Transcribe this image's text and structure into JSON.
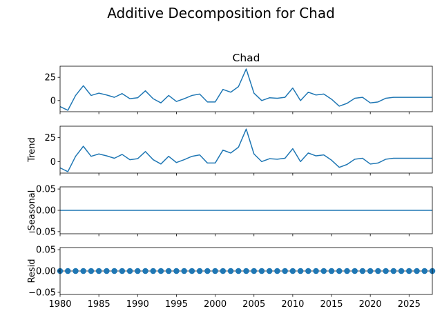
{
  "figure": {
    "suptitle": "Additive Decomposition for Chad"
  },
  "colors": {
    "line": "#1f77b4",
    "axes": "#000000",
    "background": "#ffffff"
  },
  "chart_data": [
    {
      "type": "line",
      "panel": "observed",
      "title": "Chad",
      "ylabel": "",
      "xlim": [
        1980,
        2028
      ],
      "ylim": [
        -12,
        37
      ],
      "yticks": [
        0,
        25
      ],
      "yticklabels": [
        "0",
        "25"
      ],
      "x": [
        1980,
        1981,
        1982,
        1983,
        1984,
        1985,
        1986,
        1987,
        1988,
        1989,
        1990,
        1991,
        1992,
        1993,
        1994,
        1995,
        1996,
        1997,
        1998,
        1999,
        2000,
        2001,
        2002,
        2003,
        2004,
        2005,
        2006,
        2007,
        2008,
        2009,
        2010,
        2011,
        2012,
        2013,
        2014,
        2015,
        2016,
        2017,
        2018,
        2019,
        2020,
        2021,
        2022,
        2023,
        2024,
        2025,
        2026,
        2027,
        2028
      ],
      "y": [
        -6.5,
        -10.5,
        5.5,
        16,
        5.5,
        8,
        6,
        3.5,
        7.5,
        2,
        3,
        10.5,
        2,
        -2.5,
        5.5,
        -1,
        2,
        5.5,
        7,
        -1.5,
        -1.5,
        12,
        9,
        15,
        34,
        8,
        0,
        3,
        2.5,
        3.5,
        13.5,
        0,
        9,
        6,
        7,
        1.5,
        -6,
        -3,
        2.5,
        3.5,
        -2.5,
        -1.5,
        2.5,
        3.5,
        3.5,
        3.5,
        3.5,
        3.5,
        3.5
      ]
    },
    {
      "type": "line",
      "panel": "trend",
      "ylabel": "Trend",
      "xlim": [
        1980,
        2028
      ],
      "ylim": [
        -12,
        37
      ],
      "yticks": [
        0,
        25
      ],
      "yticklabels": [
        "0",
        "25"
      ],
      "x": [
        1980,
        1981,
        1982,
        1983,
        1984,
        1985,
        1986,
        1987,
        1988,
        1989,
        1990,
        1991,
        1992,
        1993,
        1994,
        1995,
        1996,
        1997,
        1998,
        1999,
        2000,
        2001,
        2002,
        2003,
        2004,
        2005,
        2006,
        2007,
        2008,
        2009,
        2010,
        2011,
        2012,
        2013,
        2014,
        2015,
        2016,
        2017,
        2018,
        2019,
        2020,
        2021,
        2022,
        2023,
        2024,
        2025,
        2026,
        2027,
        2028
      ],
      "y": [
        -6.5,
        -10.5,
        5.5,
        16,
        5.5,
        8,
        6,
        3.5,
        7.5,
        2,
        3,
        10.5,
        2,
        -2.5,
        5.5,
        -1,
        2,
        5.5,
        7,
        -1.5,
        -1.5,
        12,
        9,
        15,
        34,
        8,
        0,
        3,
        2.5,
        3.5,
        13.5,
        0,
        9,
        6,
        7,
        1.5,
        -6,
        -3,
        2.5,
        3.5,
        -2.5,
        -1.5,
        2.5,
        3.5,
        3.5,
        3.5,
        3.5,
        3.5,
        3.5
      ]
    },
    {
      "type": "line",
      "panel": "seasonal",
      "ylabel": "Seasonal",
      "xlim": [
        1980,
        2028
      ],
      "ylim": [
        -0.055,
        0.055
      ],
      "yticks": [
        -0.05,
        0,
        0.05
      ],
      "yticklabels": [
        "−0.05",
        "0.00",
        "0.05"
      ],
      "x": [
        1980,
        2028
      ],
      "y": [
        0,
        0
      ]
    },
    {
      "type": "scatter",
      "panel": "resid",
      "ylabel": "Resid",
      "xlim": [
        1980,
        2028
      ],
      "ylim": [
        -0.055,
        0.055
      ],
      "yticks": [
        -0.05,
        0,
        0.05
      ],
      "yticklabels": [
        "−0.05",
        "0.00",
        "0.05"
      ],
      "xticks": [
        1980,
        1985,
        1990,
        1995,
        2000,
        2005,
        2010,
        2015,
        2020,
        2025
      ],
      "xticklabels": [
        "1980",
        "1985",
        "1990",
        "1995",
        "2000",
        "2005",
        "2010",
        "2015",
        "2020",
        "2025"
      ],
      "x": [
        1980,
        1981,
        1982,
        1983,
        1984,
        1985,
        1986,
        1987,
        1988,
        1989,
        1990,
        1991,
        1992,
        1993,
        1994,
        1995,
        1996,
        1997,
        1998,
        1999,
        2000,
        2001,
        2002,
        2003,
        2004,
        2005,
        2006,
        2007,
        2008,
        2009,
        2010,
        2011,
        2012,
        2013,
        2014,
        2015,
        2016,
        2017,
        2018,
        2019,
        2020,
        2021,
        2022,
        2023,
        2024,
        2025,
        2026,
        2027,
        2028
      ],
      "y": [
        0,
        0,
        0,
        0,
        0,
        0,
        0,
        0,
        0,
        0,
        0,
        0,
        0,
        0,
        0,
        0,
        0,
        0,
        0,
        0,
        0,
        0,
        0,
        0,
        0,
        0,
        0,
        0,
        0,
        0,
        0,
        0,
        0,
        0,
        0,
        0,
        0,
        0,
        0,
        0,
        0,
        0,
        0,
        0,
        0,
        0,
        0,
        0,
        0
      ]
    }
  ]
}
